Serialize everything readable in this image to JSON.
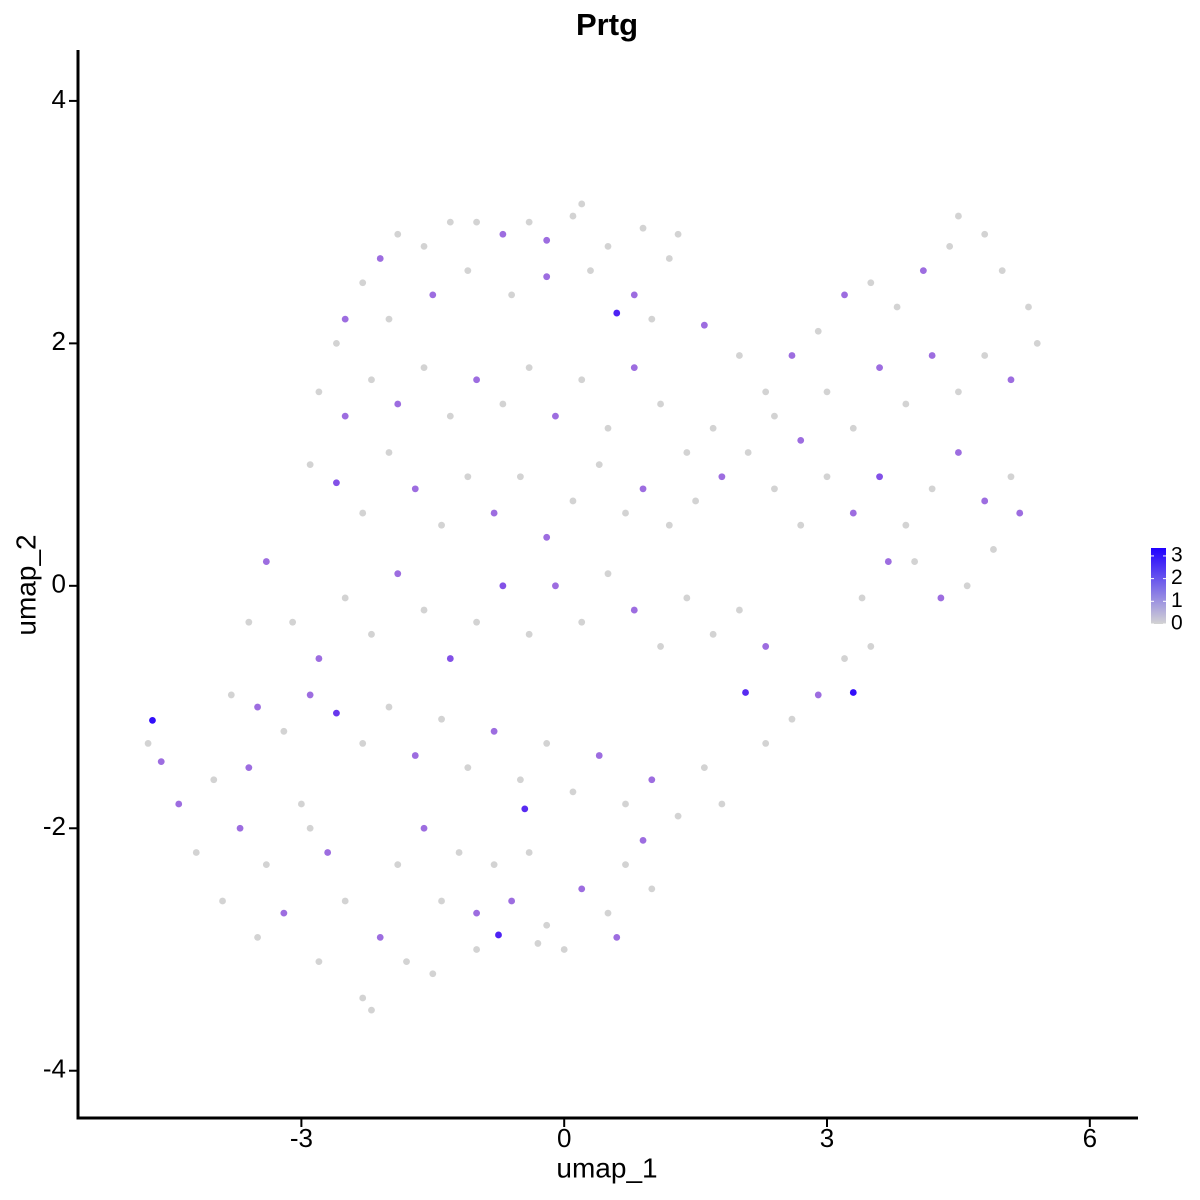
{
  "chart_data": {
    "type": "scatter",
    "title": "Prtg",
    "x_label": "umap_1",
    "y_label": "umap_2",
    "xlim": [
      -5.55,
      6.55
    ],
    "ylim": [
      -4.39,
      4.42
    ],
    "xticks": [
      -3,
      0,
      3,
      6
    ],
    "yticks": [
      -4,
      -2,
      0,
      2,
      4
    ],
    "grid": false,
    "colorbar": {
      "range": [
        0,
        3.35
      ],
      "ticks": [
        0,
        1,
        2,
        3
      ],
      "low": "#d3d3d3",
      "high": "#0000ff"
    },
    "x": [
      -2.6,
      -2.5,
      -2.3,
      -2.1,
      -1.9,
      -1.6,
      -1.3,
      -1.0,
      -0.7,
      -0.4,
      -0.2,
      0.1,
      0.2,
      0.5,
      0.9,
      1.3,
      1.2,
      -2.0,
      -1.5,
      -1.1,
      -0.6,
      -0.2,
      0.3,
      0.8,
      0.6,
      1.0,
      1.6,
      -2.8,
      -2.5,
      -2.2,
      -1.9,
      -1.6,
      -1.3,
      -1.0,
      -0.7,
      -0.4,
      -0.1,
      0.2,
      0.5,
      0.8,
      1.1,
      1.4,
      1.7,
      -2.9,
      -2.6,
      -2.3,
      -2.0,
      -1.7,
      -1.4,
      -1.1,
      -0.8,
      -0.5,
      -0.2,
      0.1,
      0.4,
      0.7,
      0.9,
      1.2,
      1.5,
      1.8,
      2.0,
      2.3,
      2.6,
      2.9,
      3.2,
      3.5,
      3.8,
      4.1,
      4.4,
      4.5,
      4.8,
      5.0,
      5.3,
      5.4,
      5.1,
      4.8,
      4.5,
      4.2,
      3.9,
      3.6,
      3.3,
      3.0,
      2.7,
      2.4,
      2.1,
      2.4,
      2.7,
      3.0,
      3.3,
      3.6,
      3.9,
      4.2,
      4.5,
      4.8,
      5.1,
      5.2,
      4.9,
      4.6,
      4.3,
      4.0,
      3.7,
      3.4,
      3.5,
      3.2,
      3.3,
      2.9,
      2.6,
      2.3,
      2.07,
      -0.1,
      0.2,
      0.5,
      0.8,
      1.1,
      1.4,
      1.7,
      2.0,
      2.3,
      -0.4,
      -0.7,
      -1.0,
      -1.3,
      -1.6,
      -1.9,
      -2.2,
      -2.5,
      -2.8,
      -3.1,
      -3.4,
      -3.6,
      -3.8,
      -3.5,
      -3.2,
      -2.9,
      -2.6,
      -2.3,
      -2.0,
      -1.7,
      -1.4,
      -1.1,
      -0.8,
      -0.5,
      -0.2,
      0.1,
      0.4,
      0.7,
      1.0,
      1.3,
      1.6,
      1.8,
      -0.45,
      -4.7,
      -4.75,
      -4.6,
      -4.4,
      -4.2,
      -4.0,
      -3.9,
      -3.7,
      -3.5,
      -3.4,
      -3.2,
      -3.0,
      -2.8,
      -2.7,
      -2.5,
      -2.3,
      -2.2,
      -2.1,
      -1.9,
      -1.8,
      -1.6,
      -1.4,
      -1.5,
      -1.2,
      -1.0,
      -0.8,
      -0.75,
      -0.6,
      -0.4,
      -0.2,
      0.0,
      0.2,
      0.5,
      0.7,
      0.9,
      1.0,
      0.6,
      -2.9,
      -3.6,
      -1.0,
      -0.3
    ],
    "y": [
      2.0,
      2.2,
      2.5,
      2.7,
      2.9,
      2.8,
      3.0,
      3.0,
      2.9,
      3.0,
      2.85,
      3.05,
      3.15,
      2.8,
      2.95,
      2.9,
      2.7,
      2.2,
      2.4,
      2.6,
      2.4,
      2.55,
      2.6,
      2.4,
      2.25,
      2.2,
      2.15,
      1.6,
      1.4,
      1.7,
      1.5,
      1.8,
      1.4,
      1.7,
      1.5,
      1.8,
      1.4,
      1.7,
      1.3,
      1.8,
      1.5,
      1.1,
      1.3,
      1.0,
      0.85,
      0.6,
      1.1,
      0.8,
      0.5,
      0.9,
      0.6,
      0.9,
      0.4,
      0.7,
      1.0,
      0.6,
      0.8,
      0.5,
      0.7,
      0.9,
      1.9,
      1.6,
      1.9,
      2.1,
      2.4,
      2.5,
      2.3,
      2.6,
      2.8,
      3.05,
      2.9,
      2.6,
      2.3,
      2.0,
      1.7,
      1.9,
      1.6,
      1.9,
      1.5,
      1.8,
      1.3,
      1.6,
      1.2,
      1.4,
      1.1,
      0.8,
      0.5,
      0.9,
      0.6,
      0.9,
      0.5,
      0.8,
      1.1,
      0.7,
      0.9,
      0.6,
      0.3,
      0.0,
      -0.1,
      0.2,
      0.2,
      -0.1,
      -0.5,
      -0.6,
      -0.88,
      -0.9,
      -1.1,
      -1.3,
      -0.88,
      0.0,
      -0.3,
      0.1,
      -0.2,
      -0.5,
      -0.1,
      -0.4,
      -0.2,
      -0.5,
      -0.4,
      0.0,
      -0.3,
      -0.6,
      -0.2,
      0.1,
      -0.4,
      -0.1,
      -0.6,
      -0.3,
      0.2,
      -0.3,
      -0.9,
      -1.0,
      -1.2,
      -0.9,
      -1.05,
      -1.3,
      -1.0,
      -1.4,
      -1.1,
      -1.5,
      -1.2,
      -1.6,
      -1.3,
      -1.7,
      -1.4,
      -1.8,
      -1.6,
      -1.9,
      -1.5,
      -1.8,
      -1.84,
      -1.11,
      -1.3,
      -1.45,
      -1.8,
      -2.2,
      -1.6,
      -2.6,
      -2.0,
      -2.9,
      -2.3,
      -2.7,
      -1.8,
      -3.1,
      -2.2,
      -2.6,
      -3.4,
      -3.5,
      -2.9,
      -2.3,
      -3.1,
      -2.0,
      -2.6,
      -3.2,
      -2.2,
      -2.7,
      -2.3,
      -2.88,
      -2.6,
      -2.2,
      -2.8,
      -3.0,
      -2.5,
      -2.7,
      -2.3,
      -2.1,
      -2.5,
      -2.9,
      -2.0,
      -1.5,
      -3.0,
      -2.95
    ],
    "values": [
      0,
      1,
      0,
      1,
      0,
      0,
      0,
      0,
      1,
      0,
      1,
      0,
      0,
      0,
      0,
      0,
      0,
      0,
      1,
      0,
      0,
      1,
      0,
      1,
      2.5,
      0,
      1,
      0,
      1,
      0,
      1,
      0,
      0,
      1,
      0,
      0,
      1,
      0,
      0,
      1,
      0,
      0,
      0,
      0,
      1.5,
      0,
      0,
      1,
      0,
      0,
      1,
      0,
      1,
      0,
      0,
      0,
      1,
      0,
      0,
      1,
      0,
      0,
      1,
      0,
      1,
      0,
      0,
      1,
      0,
      0,
      0,
      0,
      0,
      0,
      1,
      0,
      0,
      1,
      0,
      1,
      0,
      0,
      1,
      0,
      0,
      0,
      0,
      0,
      1,
      1.5,
      0,
      0,
      1,
      1,
      0,
      1,
      0,
      0,
      1,
      0,
      1,
      0,
      0,
      0,
      3,
      1,
      0,
      0,
      2.3,
      1,
      0,
      0,
      1,
      0,
      0,
      0,
      0,
      1,
      0,
      1.5,
      0,
      1.5,
      0,
      1,
      0,
      0,
      1,
      0,
      1,
      0,
      0,
      1,
      0,
      1,
      2,
      0,
      0,
      1,
      0,
      0,
      1,
      0,
      0,
      0,
      1,
      0,
      1,
      0,
      0,
      0,
      2.3,
      3,
      0,
      1,
      1,
      0,
      0,
      0,
      1,
      0,
      0,
      1,
      0,
      0,
      1,
      0,
      0,
      0,
      1,
      0,
      0,
      1,
      0,
      0,
      0,
      1,
      0,
      2.5,
      1,
      0,
      0,
      0,
      1,
      0,
      0,
      1,
      0,
      1,
      0,
      1,
      0,
      0
    ]
  }
}
